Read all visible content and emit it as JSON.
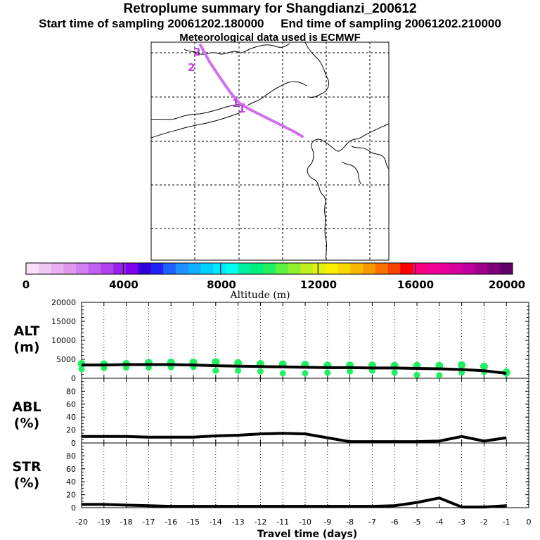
{
  "title": "Retroplume summary for Shangdianzi_200612",
  "sampling_start_label": "Start time of sampling 20061202.180000",
  "sampling_end_label": "End time of sampling 20061202.210000",
  "met_label": "Meteorological data used is ECMWF",
  "map": {
    "trajectory_color": "#d070f0",
    "trajectory_markers": [
      "2",
      "2",
      "1",
      "1"
    ]
  },
  "colorbar": {
    "title": "Altitude (m)",
    "ticks": [
      "0",
      "4000",
      "8000",
      "12000",
      "16000",
      "20000"
    ],
    "range": [
      0,
      20000
    ],
    "colors": [
      "#f8e0f8",
      "#f0c8f4",
      "#e8b0f0",
      "#e098ec",
      "#d080f0",
      "#c060f0",
      "#b040f0",
      "#9a20f0",
      "#8000f0",
      "#3000d8",
      "#2020f8",
      "#2060ff",
      "#2090ff",
      "#10b0ff",
      "#00d0ff",
      "#00e8ff",
      "#00ffee",
      "#00f0a0",
      "#00f080",
      "#20f060",
      "#60f040",
      "#90f030",
      "#c0f020",
      "#e0f010",
      "#f8f000",
      "#f8d800",
      "#f8b800",
      "#f89800",
      "#f87000",
      "#f84000",
      "#f80000",
      "#f80080",
      "#f00090",
      "#e80098",
      "#d8009a",
      "#c0009c",
      "#a0008c",
      "#80007c",
      "#60006a"
    ]
  },
  "chart_data": [
    {
      "type": "line",
      "name": "ALT",
      "panel_label": "ALT",
      "unit_label": "(m)",
      "x": [
        -20,
        -19,
        -18,
        -17,
        -16,
        -15,
        -14,
        -13,
        -12,
        -11,
        -10,
        -9,
        -8,
        -7,
        -6,
        -5,
        -4,
        -3,
        -2,
        -1
      ],
      "series": [
        {
          "name": "mean altitude",
          "values": [
            3500,
            3500,
            3600,
            3600,
            3600,
            3500,
            3300,
            3200,
            3100,
            3000,
            2900,
            2800,
            2800,
            2700,
            2700,
            2600,
            2500,
            2300,
            2000,
            1300
          ]
        },
        {
          "name": "cluster upper",
          "values": [
            3800,
            3700,
            3800,
            4100,
            4200,
            4200,
            4300,
            4000,
            3800,
            3700,
            3600,
            3400,
            3400,
            3400,
            3300,
            3300,
            3300,
            3500,
            3100,
            1600
          ]
        },
        {
          "name": "cluster lower",
          "values": [
            2400,
            2700,
            2800,
            2800,
            2900,
            3000,
            2000,
            2000,
            1800,
            1300,
            1300,
            1500,
            1800,
            2000,
            1500,
            900,
            800,
            1500,
            1700,
            1200
          ]
        }
      ],
      "ylim": [
        0,
        20000
      ],
      "yticks": [
        "0",
        "5000",
        "10000",
        "15000",
        "20000"
      ]
    },
    {
      "type": "line",
      "name": "ABL",
      "panel_label": "ABL",
      "unit_label": "(%)",
      "x": [
        -20,
        -19,
        -18,
        -17,
        -16,
        -15,
        -14,
        -13,
        -12,
        -11,
        -10,
        -9,
        -8,
        -7,
        -6,
        -5,
        -4,
        -3,
        -2,
        -1
      ],
      "series": [
        {
          "name": "ABL fraction",
          "values": [
            10,
            10,
            10,
            9,
            9,
            9,
            11,
            12,
            14,
            15,
            14,
            8,
            2,
            2,
            2,
            2,
            3,
            10,
            3,
            8
          ]
        }
      ],
      "ylim": [
        0,
        100
      ],
      "yticks": [
        "0",
        "20",
        "40",
        "60",
        "80"
      ]
    },
    {
      "type": "line",
      "name": "STR",
      "panel_label": "STR",
      "unit_label": "(%)",
      "x": [
        -20,
        -19,
        -18,
        -17,
        -16,
        -15,
        -14,
        -13,
        -12,
        -11,
        -10,
        -9,
        -8,
        -7,
        -6,
        -5,
        -4,
        -3,
        -2,
        -1
      ],
      "series": [
        {
          "name": "STR fraction",
          "values": [
            5,
            5,
            4,
            3,
            2,
            2,
            2,
            2,
            2,
            2,
            2,
            2,
            2,
            2,
            3,
            8,
            15,
            1,
            1,
            3
          ]
        }
      ],
      "ylim": [
        0,
        100
      ],
      "yticks": [
        "0",
        "20",
        "40",
        "60",
        "80"
      ]
    }
  ],
  "x_axis": {
    "title": "Travel time (days)",
    "ticks": [
      "-20",
      "-19",
      "-18",
      "-17",
      "-16",
      "-15",
      "-14",
      "-13",
      "-12",
      "-11",
      "-10",
      "-9",
      "-8",
      "-7",
      "-6",
      "-5",
      "-4",
      "-3",
      "-2",
      "-1",
      "0"
    ]
  }
}
